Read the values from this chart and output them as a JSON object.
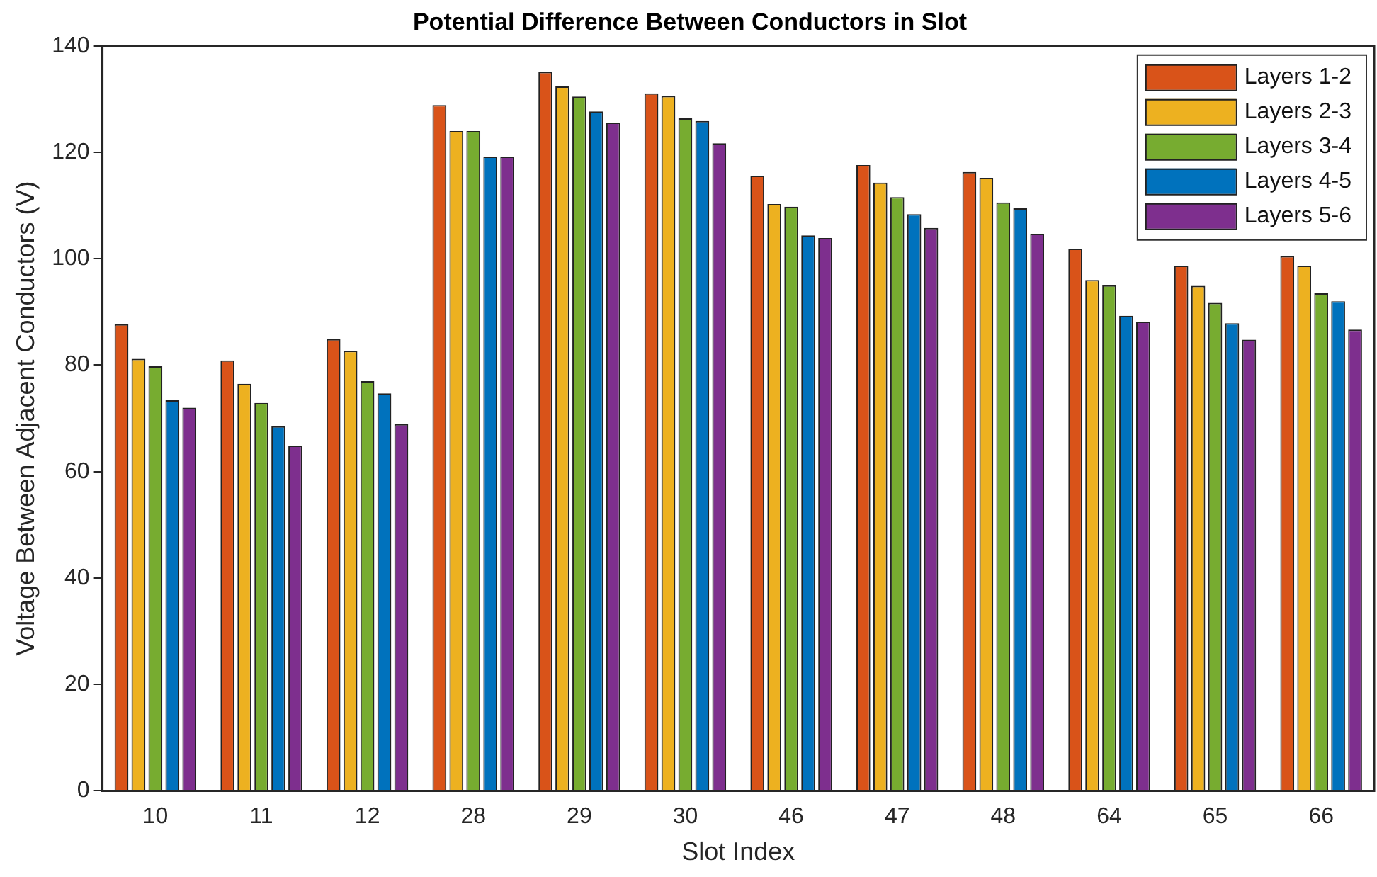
{
  "chart_data": {
    "type": "bar",
    "title": "Potential Difference Between Conductors in Slot",
    "xlabel": "Slot Index",
    "ylabel": "Voltage Between Adjacent Conductors (V)",
    "categories": [
      "10",
      "11",
      "12",
      "28",
      "29",
      "30",
      "46",
      "47",
      "48",
      "64",
      "65",
      "66"
    ],
    "series": [
      {
        "name": "Layers 1-2",
        "color": "#d95319",
        "values": [
          87.7,
          80.9,
          84.9,
          128.9,
          135.1,
          131.1,
          115.6,
          117.6,
          116.3,
          101.9,
          98.7,
          100.5
        ]
      },
      {
        "name": "Layers 2-3",
        "color": "#edb120",
        "values": [
          81.2,
          76.5,
          82.7,
          124,
          132.4,
          130.6,
          110.3,
          114.3,
          115.2,
          96,
          94.9,
          98.7
        ]
      },
      {
        "name": "Layers 3-4",
        "color": "#77ac30",
        "values": [
          79.8,
          72.9,
          77,
          124,
          130.5,
          126.4,
          109.8,
          111.6,
          110.6,
          95,
          91.7,
          93.5
        ]
      },
      {
        "name": "Layers 4-5",
        "color": "#0072bd",
        "values": [
          73.4,
          68.5,
          74.7,
          119.2,
          127.7,
          125.9,
          104.4,
          108.4,
          109.5,
          89.3,
          87.9,
          92
        ]
      },
      {
        "name": "Layers 5-6",
        "color": "#7e2f8e",
        "values": [
          72,
          64.9,
          68.9,
          119.2,
          125.6,
          121.7,
          103.9,
          105.8,
          104.7,
          88.2,
          84.8,
          86.7
        ]
      }
    ],
    "ylim": [
      0,
      140
    ],
    "yticks": [
      0,
      20,
      40,
      60,
      80,
      100,
      120,
      140
    ],
    "grid": false,
    "legend": "top right"
  }
}
